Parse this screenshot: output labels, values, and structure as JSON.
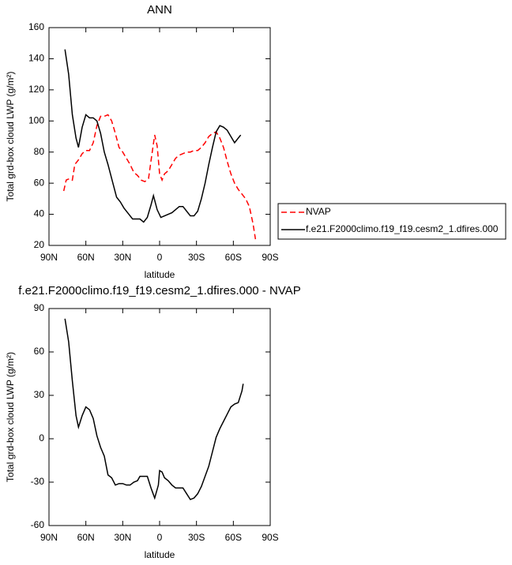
{
  "chart_data": [
    {
      "type": "line",
      "title": "ANN",
      "x_label": "latitude",
      "y_label": "Total grd-box cloud LWP (g/m²)",
      "xlim": [
        90,
        -90
      ],
      "xticks": [
        {
          "value": 90,
          "label": "90N"
        },
        {
          "value": 60,
          "label": "60N"
        },
        {
          "value": 30,
          "label": "30N"
        },
        0,
        {
          "value": -30,
          "label": "30S"
        },
        {
          "value": -60,
          "label": "60S"
        },
        {
          "value": -90,
          "label": "90S"
        }
      ],
      "ylim": [
        20,
        160
      ],
      "yticks": [
        20,
        40,
        60,
        80,
        100,
        120,
        140,
        160
      ],
      "legend": "right",
      "series": [
        {
          "name": "NVAP",
          "color": "#ff0000",
          "dashed": true,
          "x": [
            78,
            76,
            73,
            71,
            69,
            66,
            63,
            60,
            57,
            54,
            51,
            48,
            45,
            42,
            39,
            36,
            33,
            30,
            27,
            24,
            21,
            18,
            15,
            12,
            9,
            6,
            4,
            2,
            0,
            -2,
            -4,
            -7,
            -10,
            -13,
            -16,
            -19,
            -22,
            -25,
            -28,
            -31,
            -34,
            -37,
            -40,
            -43,
            -46,
            -49,
            -52,
            -55,
            -58,
            -61,
            -64,
            -67,
            -70,
            -73,
            -76,
            -78
          ],
          "values": [
            55,
            62,
            63,
            62,
            72,
            75,
            79,
            81,
            81,
            86,
            97,
            103,
            103,
            104,
            100,
            92,
            83,
            80,
            76,
            72,
            67,
            65,
            62,
            61,
            63,
            80,
            91,
            84,
            66,
            62,
            66,
            68,
            72,
            76,
            78,
            79,
            80,
            80,
            81,
            81,
            83,
            86,
            90,
            92,
            93,
            89,
            83,
            74,
            66,
            60,
            56,
            53,
            50,
            45,
            34,
            24
          ]
        },
        {
          "name": "f.e21.F2000climo.f19_f19.cesm2_1.dfires.000",
          "color": "#000000",
          "dashed": false,
          "x": [
            77,
            74,
            71,
            68,
            66,
            63,
            60,
            57,
            54,
            51,
            48,
            45,
            42,
            38,
            35,
            32,
            29,
            25,
            22,
            19,
            16,
            13,
            10,
            7,
            5,
            2,
            -1,
            -4,
            -7,
            -10,
            -13,
            -16,
            -19,
            -22,
            -25,
            -28,
            -31,
            -34,
            -37,
            -40,
            -43,
            -46,
            -49,
            -52,
            -55,
            -58,
            -61,
            -64,
            -66
          ],
          "values": [
            146,
            130,
            104,
            89,
            83,
            96,
            104,
            102,
            102,
            100,
            92,
            80,
            72,
            60,
            51,
            48,
            44,
            40,
            37,
            37,
            37,
            35,
            38,
            46,
            52,
            43,
            38,
            39,
            40,
            41,
            43,
            45,
            45,
            42,
            39,
            39,
            42,
            50,
            60,
            72,
            83,
            93,
            97,
            96,
            94,
            90,
            86,
            89,
            91
          ]
        }
      ]
    },
    {
      "type": "line",
      "title": "f.e21.F2000climo.f19_f19.cesm2_1.dfires.000 - NVAP",
      "x_label": "latitude",
      "y_label": "Total grd-box cloud LWP (g/m²)",
      "xlim": [
        90,
        -90
      ],
      "xticks": [
        {
          "value": 90,
          "label": "90N"
        },
        {
          "value": 60,
          "label": "60N"
        },
        {
          "value": 30,
          "label": "30N"
        },
        0,
        {
          "value": -30,
          "label": "30S"
        },
        {
          "value": -60,
          "label": "60S"
        },
        {
          "value": -90,
          "label": "90S"
        }
      ],
      "ylim": [
        -60,
        90
      ],
      "yticks": [
        -60,
        -30,
        0,
        30,
        60,
        90
      ],
      "series": [
        {
          "color": "#000000",
          "dashed": false,
          "x": [
            77,
            74,
            71,
            68,
            66,
            63,
            60,
            57,
            54,
            51,
            48,
            45,
            42,
            39,
            36,
            33,
            30,
            27,
            24,
            21,
            18,
            16,
            13,
            10,
            7,
            4,
            1,
            0,
            -2,
            -4,
            -7,
            -10,
            -13,
            -16,
            -19,
            -22,
            -25,
            -28,
            -31,
            -34,
            -37,
            -40,
            -43,
            -46,
            -49,
            -52,
            -55,
            -58,
            -61,
            -64,
            -67,
            -68
          ],
          "values": [
            83,
            67,
            40,
            16,
            8,
            16,
            22,
            20,
            14,
            2,
            -6,
            -12,
            -25,
            -27,
            -32,
            -31,
            -31,
            -32,
            -32,
            -30,
            -29,
            -26,
            -26,
            -26,
            -34,
            -41,
            -32,
            -22,
            -23,
            -27,
            -29,
            -32,
            -34,
            -34,
            -34,
            -38,
            -42,
            -41,
            -38,
            -33,
            -26,
            -19,
            -9,
            1,
            7,
            12,
            17,
            22,
            24,
            25,
            33,
            38
          ]
        }
      ]
    }
  ]
}
